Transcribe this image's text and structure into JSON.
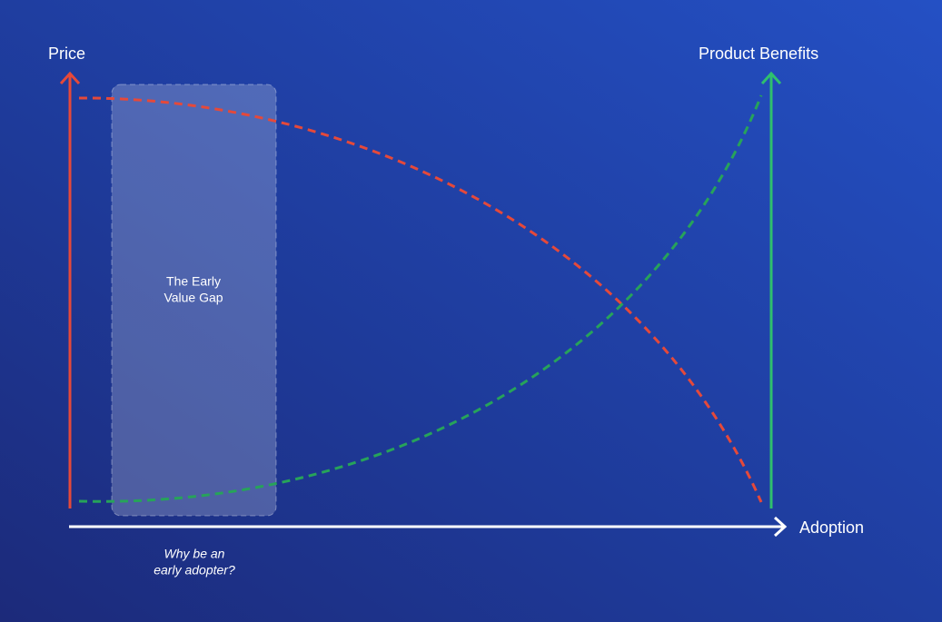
{
  "axes": {
    "price": "Price",
    "benefits": "Product Benefits",
    "adoption": "Adoption"
  },
  "gap": {
    "lines": [
      "The Early",
      "Value Gap"
    ]
  },
  "caption": {
    "lines": [
      "Why be an",
      "early adopter?"
    ]
  }
}
